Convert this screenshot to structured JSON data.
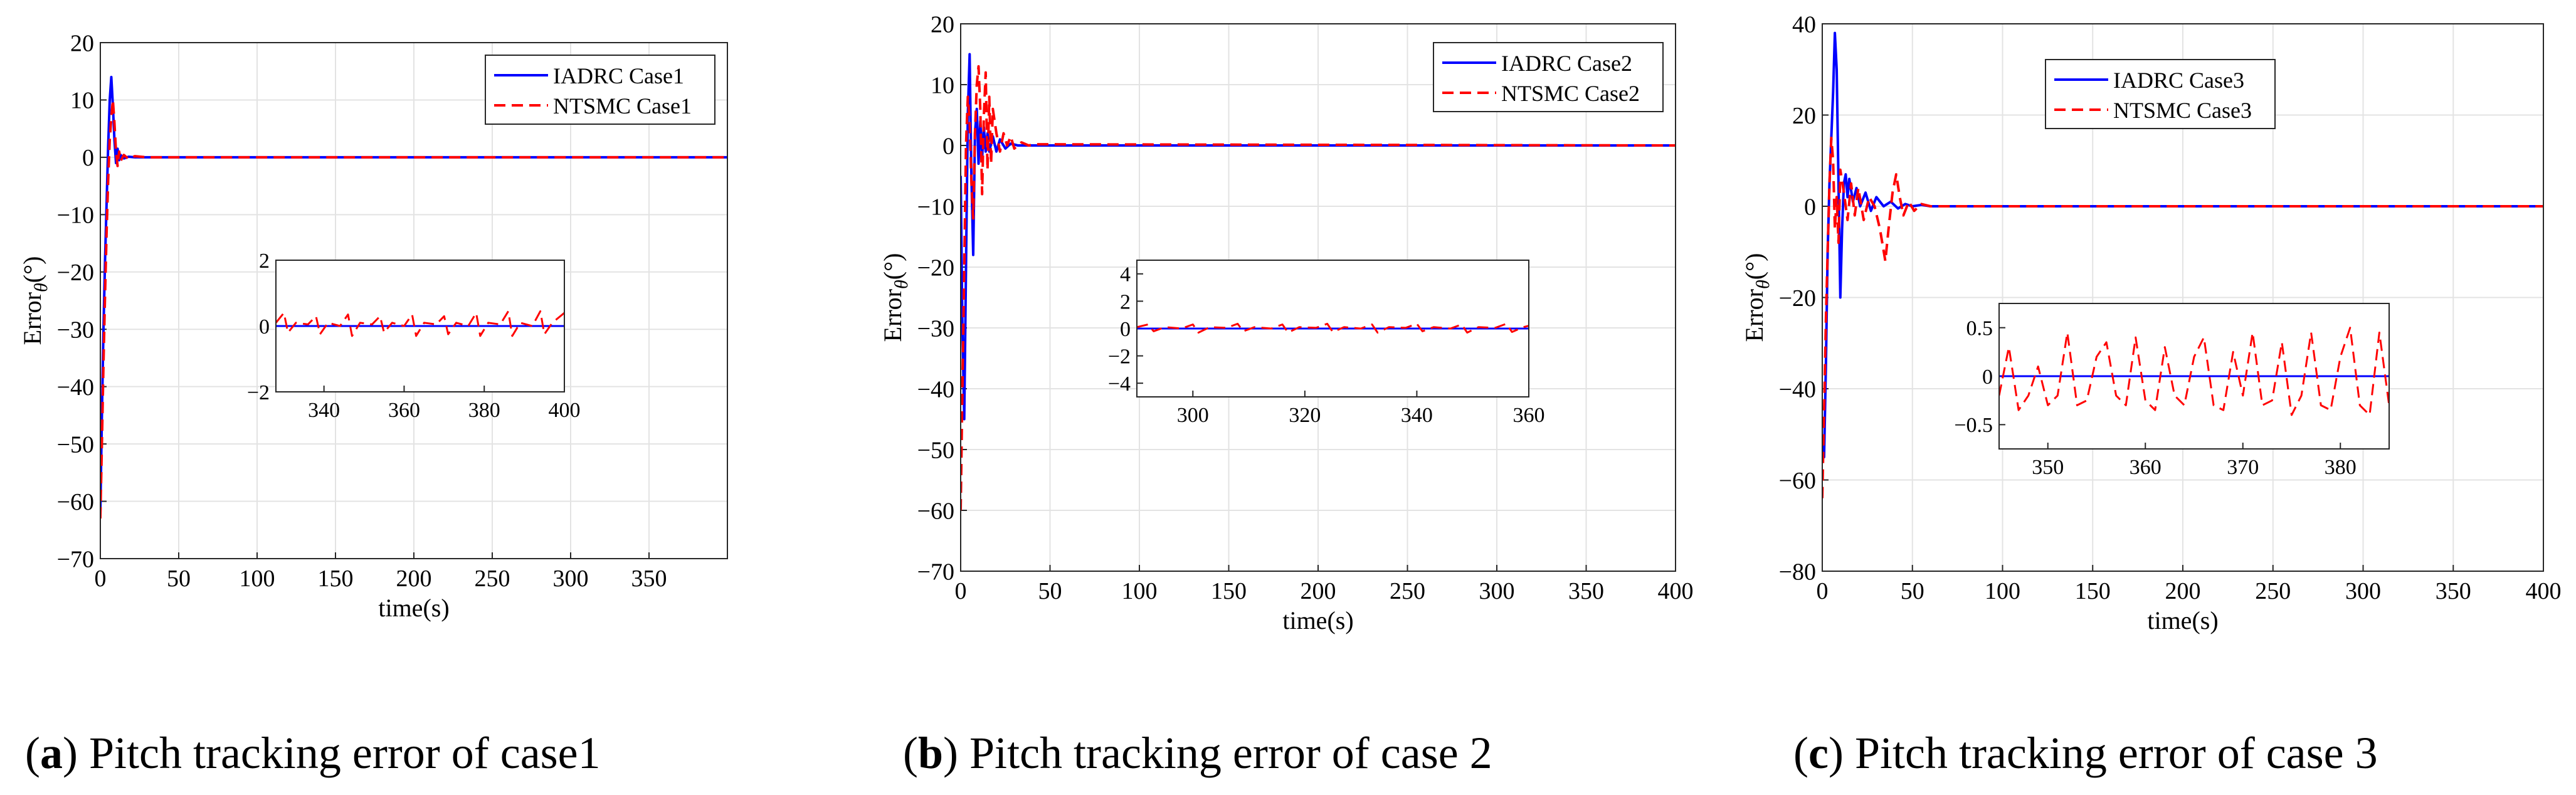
{
  "colors": {
    "iadrc": "#0000ff",
    "ntsmc": "#ff0000",
    "grid": "#e3e3e3",
    "axis": "#262626"
  },
  "chart_data": [
    {
      "type": "line",
      "caption": {
        "letter": "a",
        "text": "Pitch tracking error of case1"
      },
      "xlabel": "time(s)",
      "ylabel": "Error θ (°)",
      "ylabel_main": "Error",
      "ylabel_sub": "θ",
      "ylabel_unit": "(°)",
      "xlim": [
        0,
        400
      ],
      "ylim": [
        -70,
        20
      ],
      "xticks": [
        0,
        50,
        100,
        150,
        200,
        250,
        300,
        350
      ],
      "yticks": [
        -70,
        -60,
        -50,
        -40,
        -30,
        -20,
        -10,
        0,
        10,
        20
      ],
      "grid": true,
      "legend_position": "top-right",
      "series": [
        {
          "name": "IADRC Case1",
          "style": "solid",
          "x": [
            0,
            1,
            2,
            3,
            4,
            5,
            6,
            7,
            8,
            9,
            10,
            11,
            12,
            13,
            15,
            18,
            22,
            30,
            400
          ],
          "y": [
            -62,
            -45,
            -30,
            -18,
            -8,
            2,
            10,
            14,
            9,
            3,
            -1,
            1.5,
            -0.5,
            0.4,
            -0.2,
            0.1,
            0,
            0,
            0
          ]
        },
        {
          "name": "NTSMC Case1",
          "style": "dashed",
          "x": [
            0,
            1,
            2,
            3,
            4,
            5,
            6,
            7,
            8,
            9,
            10,
            11,
            12,
            13,
            15,
            18,
            22,
            30,
            400
          ],
          "y": [
            -63,
            -50,
            -36,
            -24,
            -13,
            -4,
            3,
            7,
            10,
            6,
            1,
            -1.5,
            1,
            -0.6,
            0.4,
            -0.3,
            0.2,
            0,
            0
          ]
        }
      ],
      "inset": {
        "xlim": [
          328,
          400
        ],
        "ylim": [
          -2,
          2
        ],
        "xticks": [
          340,
          360,
          380,
          400
        ],
        "yticks": [
          -2,
          0,
          2
        ],
        "series": [
          {
            "name": "IADRC Case1",
            "x": [
              328,
              400
            ],
            "y": [
              0,
              0
            ]
          },
          {
            "name": "NTSMC Case1",
            "x": [
              328,
              330,
              331,
              333,
              336,
              338,
              339,
              341,
              344,
              346,
              347,
              349,
              352,
              354,
              355,
              357,
              360,
              362,
              363,
              365,
              368,
              370,
              371,
              373,
              376,
              378,
              379,
              381,
              384,
              386,
              387,
              389,
              392,
              394,
              395,
              397,
              400
            ],
            "y": [
              0.1,
              0.4,
              -0.2,
              0.1,
              0.05,
              0.3,
              -0.25,
              0.1,
              0.0,
              0.35,
              -0.3,
              0.1,
              0.05,
              0.3,
              -0.2,
              0.1,
              0.0,
              0.35,
              -0.3,
              0.1,
              0.05,
              0.3,
              -0.25,
              0.1,
              0.0,
              0.4,
              -0.3,
              0.1,
              0.05,
              0.45,
              -0.3,
              0.1,
              0.0,
              0.45,
              -0.25,
              0.1,
              0.4
            ]
          }
        ]
      }
    },
    {
      "type": "line",
      "caption": {
        "letter": "b",
        "text": "Pitch tracking error of case 2"
      },
      "xlabel": "time(s)",
      "ylabel": "Error θ (°)",
      "ylabel_main": "Error",
      "ylabel_sub": "θ",
      "ylabel_unit": "(°)",
      "xlim": [
        0,
        400
      ],
      "ylim": [
        -70,
        20
      ],
      "xticks": [
        0,
        50,
        100,
        150,
        200,
        250,
        300,
        350,
        400
      ],
      "yticks": [
        -70,
        -60,
        -50,
        -40,
        -30,
        -20,
        -10,
        0,
        10,
        20
      ],
      "grid": true,
      "legend_position": "top-right",
      "series": [
        {
          "name": "IADRC Case2",
          "style": "solid",
          "x": [
            0,
            1,
            2,
            3,
            4,
            5,
            6,
            7,
            8,
            9,
            10,
            11,
            12,
            13,
            14,
            15,
            16,
            18,
            20,
            22,
            25,
            28,
            32,
            400
          ],
          "y": [
            -5,
            -30,
            -45,
            -20,
            5,
            15,
            -5,
            -18,
            2,
            6,
            -3,
            4,
            -2,
            3,
            -1,
            2,
            -1,
            1.5,
            -1,
            1,
            -0.5,
            0.3,
            0,
            0
          ]
        },
        {
          "name": "NTSMC Case2",
          "style": "dashed",
          "x": [
            0,
            1,
            2,
            3,
            4,
            5,
            6,
            7,
            8,
            9,
            10,
            11,
            12,
            13,
            14,
            15,
            16,
            17,
            18,
            20,
            22,
            24,
            26,
            28,
            30,
            34,
            38,
            42,
            400
          ],
          "y": [
            -60,
            -40,
            -20,
            0,
            8,
            4,
            -6,
            -12,
            2,
            10,
            13,
            6,
            -8,
            5,
            12,
            -4,
            8,
            -3,
            6,
            2,
            -1,
            2,
            0,
            1.5,
            -0.5,
            0.5,
            0,
            0.2,
            0
          ]
        }
      ],
      "inset": {
        "xlim": [
          290,
          360
        ],
        "ylim": [
          -5,
          5
        ],
        "xticks": [
          300,
          320,
          340,
          360
        ],
        "yticks": [
          -4,
          -2,
          0,
          2,
          4
        ],
        "series": [
          {
            "name": "IADRC Case2",
            "x": [
              290,
              360
            ],
            "y": [
              0,
              0
            ]
          },
          {
            "name": "NTSMC Case2",
            "x": [
              290,
              292,
              293,
              295,
              298,
              300,
              301,
              303,
              306,
              308,
              309,
              311,
              314,
              316,
              317,
              319,
              322,
              324,
              325,
              327,
              330,
              332,
              333,
              335,
              338,
              340,
              341,
              343,
              346,
              348,
              349,
              351,
              354,
              356,
              357,
              359,
              360
            ],
            "y": [
              0.1,
              0.3,
              -0.2,
              0.1,
              0.0,
              0.3,
              -0.3,
              0.1,
              0.05,
              0.35,
              -0.2,
              0.1,
              0.0,
              0.3,
              -0.3,
              0.1,
              0.05,
              0.35,
              -0.25,
              0.1,
              0.0,
              0.3,
              -0.3,
              0.1,
              0.05,
              0.35,
              -0.2,
              0.1,
              0.0,
              0.3,
              -0.3,
              0.1,
              0.05,
              0.35,
              -0.25,
              0.1,
              0.2
            ]
          }
        ]
      }
    },
    {
      "type": "line",
      "caption": {
        "letter": "c",
        "text": "Pitch tracking error of case 3"
      },
      "xlabel": "time(s)",
      "ylabel": "Error θ (°)",
      "ylabel_main": "Error",
      "ylabel_sub": "θ",
      "ylabel_unit": "(°)",
      "xlim": [
        0,
        400
      ],
      "ylim": [
        -80,
        40
      ],
      "xticks": [
        0,
        50,
        100,
        150,
        200,
        250,
        300,
        350,
        400
      ],
      "yticks": [
        -80,
        -60,
        -40,
        -20,
        0,
        20,
        40
      ],
      "grid": true,
      "legend_position": "top-left",
      "series": [
        {
          "name": "IADRC Case3",
          "style": "solid",
          "x": [
            0,
            1,
            2,
            3,
            4,
            5,
            6,
            7,
            8,
            9,
            10,
            11,
            12,
            13,
            14,
            15,
            17,
            19,
            21,
            24,
            27,
            30,
            34,
            38,
            42,
            46,
            50,
            55,
            60,
            400
          ],
          "y": [
            -50,
            -55,
            -35,
            -10,
            5,
            15,
            25,
            38,
            30,
            5,
            -20,
            -5,
            5,
            7,
            2,
            6,
            1,
            4,
            0,
            3,
            -1,
            2,
            0,
            1,
            -0.5,
            0.5,
            0,
            0.3,
            0,
            0
          ]
        },
        {
          "name": "NTSMC Case3",
          "style": "dashed",
          "x": [
            0,
            1,
            2,
            3,
            4,
            5,
            6,
            7,
            8,
            9,
            10,
            12,
            14,
            16,
            18,
            20,
            23,
            26,
            29,
            32,
            35,
            37,
            39,
            41,
            43,
            45,
            48,
            51,
            55,
            60,
            400
          ],
          "y": [
            -64,
            -45,
            -25,
            -10,
            5,
            15,
            10,
            -5,
            2,
            -8,
            8,
            3,
            -3,
            5,
            -2,
            4,
            -3,
            2,
            0,
            -5,
            -12,
            -4,
            3,
            7,
            2,
            -2,
            1,
            -1,
            0.5,
            0,
            0
          ]
        }
      ],
      "inset": {
        "xlim": [
          345,
          385
        ],
        "ylim": [
          -0.75,
          0.75
        ],
        "xticks": [
          350,
          360,
          370,
          380
        ],
        "yticks": [
          -0.5,
          0,
          0.5
        ],
        "series": [
          {
            "name": "IADRC Case3",
            "x": [
              345,
              385
            ],
            "y": [
              0,
              0
            ]
          },
          {
            "name": "NTSMC Case3",
            "x": [
              345,
              346,
              347,
              348,
              349,
              350,
              351,
              352,
              353,
              354,
              355,
              356,
              357,
              358,
              359,
              360,
              361,
              362,
              363,
              364,
              365,
              366,
              367,
              368,
              369,
              370,
              371,
              372,
              373,
              374,
              375,
              376,
              377,
              378,
              379,
              380,
              381,
              382,
              383,
              384,
              385
            ],
            "y": [
              -0.2,
              0.3,
              -0.35,
              -0.2,
              0.1,
              -0.3,
              -0.2,
              0.45,
              -0.3,
              -0.25,
              0.2,
              0.35,
              -0.2,
              -0.3,
              0.4,
              -0.25,
              -0.35,
              0.3,
              -0.2,
              -0.3,
              0.2,
              0.4,
              -0.3,
              -0.35,
              0.25,
              -0.2,
              0.45,
              -0.3,
              -0.25,
              0.35,
              -0.4,
              -0.2,
              0.45,
              -0.3,
              -0.35,
              0.2,
              0.5,
              -0.3,
              -0.4,
              0.45,
              -0.3
            ]
          }
        ]
      }
    }
  ]
}
